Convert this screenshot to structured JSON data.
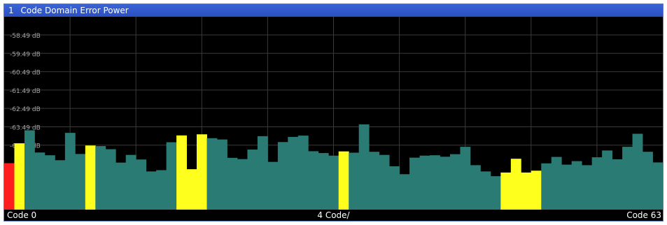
{
  "window": {
    "number": "1",
    "title": "Code Domain Error Power"
  },
  "colors": {
    "background": "#000000",
    "grid": "#3a3a3a",
    "axis_text": "#a8a8a8",
    "bar_default": "#2a7b74",
    "bar_highlight": "#ffff1e",
    "bar_selected": "#ff1e1e",
    "title_bg": "#2a56c8"
  },
  "chart_data": {
    "type": "bar",
    "title": "Code Domain Error Power",
    "y_unit": "dB",
    "yticks": [
      "-58.49 dB",
      "-59.49 dB",
      "-60.49 dB",
      "-61.49 dB",
      "-62.49 dB",
      "-63.49 dB",
      "-64.49 dB"
    ],
    "ylim": [
      -68.0,
      -57.5
    ],
    "x_labels": {
      "left": "Code 0",
      "center": "4 Code/",
      "right": "Code 63"
    },
    "grid": true,
    "categories": [
      0,
      1,
      2,
      3,
      4,
      5,
      6,
      7,
      8,
      9,
      10,
      11,
      12,
      13,
      14,
      15,
      16,
      17,
      18,
      19,
      20,
      21,
      22,
      23,
      24,
      25,
      26,
      27,
      28,
      29,
      30,
      31,
      32,
      33,
      34,
      35,
      36,
      37,
      38,
      39,
      40,
      41,
      42,
      43,
      44,
      45,
      46,
      47,
      48,
      49,
      49.5,
      50,
      51,
      52,
      53,
      54,
      55,
      56,
      57,
      58,
      59,
      60,
      61,
      62,
      63
    ],
    "values": [
      -65.47,
      -64.39,
      -63.68,
      -64.89,
      -65.04,
      -65.31,
      -63.82,
      -64.97,
      -64.51,
      -64.54,
      -64.71,
      -65.44,
      -65.02,
      -65.27,
      -65.92,
      -65.85,
      -64.33,
      -63.96,
      -65.8,
      -63.9,
      -64.11,
      -64.18,
      -65.18,
      -65.25,
      -64.73,
      -64.0,
      -65.4,
      -64.32,
      -64.04,
      -63.97,
      -64.82,
      -64.92,
      -65.06,
      -64.83,
      -64.9,
      -63.36,
      -64.85,
      -65.02,
      -65.64,
      -66.07,
      -65.17,
      -65.06,
      -65.04,
      -65.12,
      -64.98,
      -64.58,
      -65.58,
      -65.92,
      -66.18,
      -65.98,
      -65.23,
      -65.98,
      -65.88,
      -65.48,
      -65.13,
      -65.55,
      -65.36,
      -65.58,
      -65.15,
      -64.78,
      -65.26,
      -64.58,
      -63.87,
      -64.85,
      -65.43
    ],
    "highlight": [
      1,
      8,
      17,
      18,
      19,
      33,
      49,
      49.5,
      50,
      51
    ],
    "selected": [
      0
    ]
  }
}
